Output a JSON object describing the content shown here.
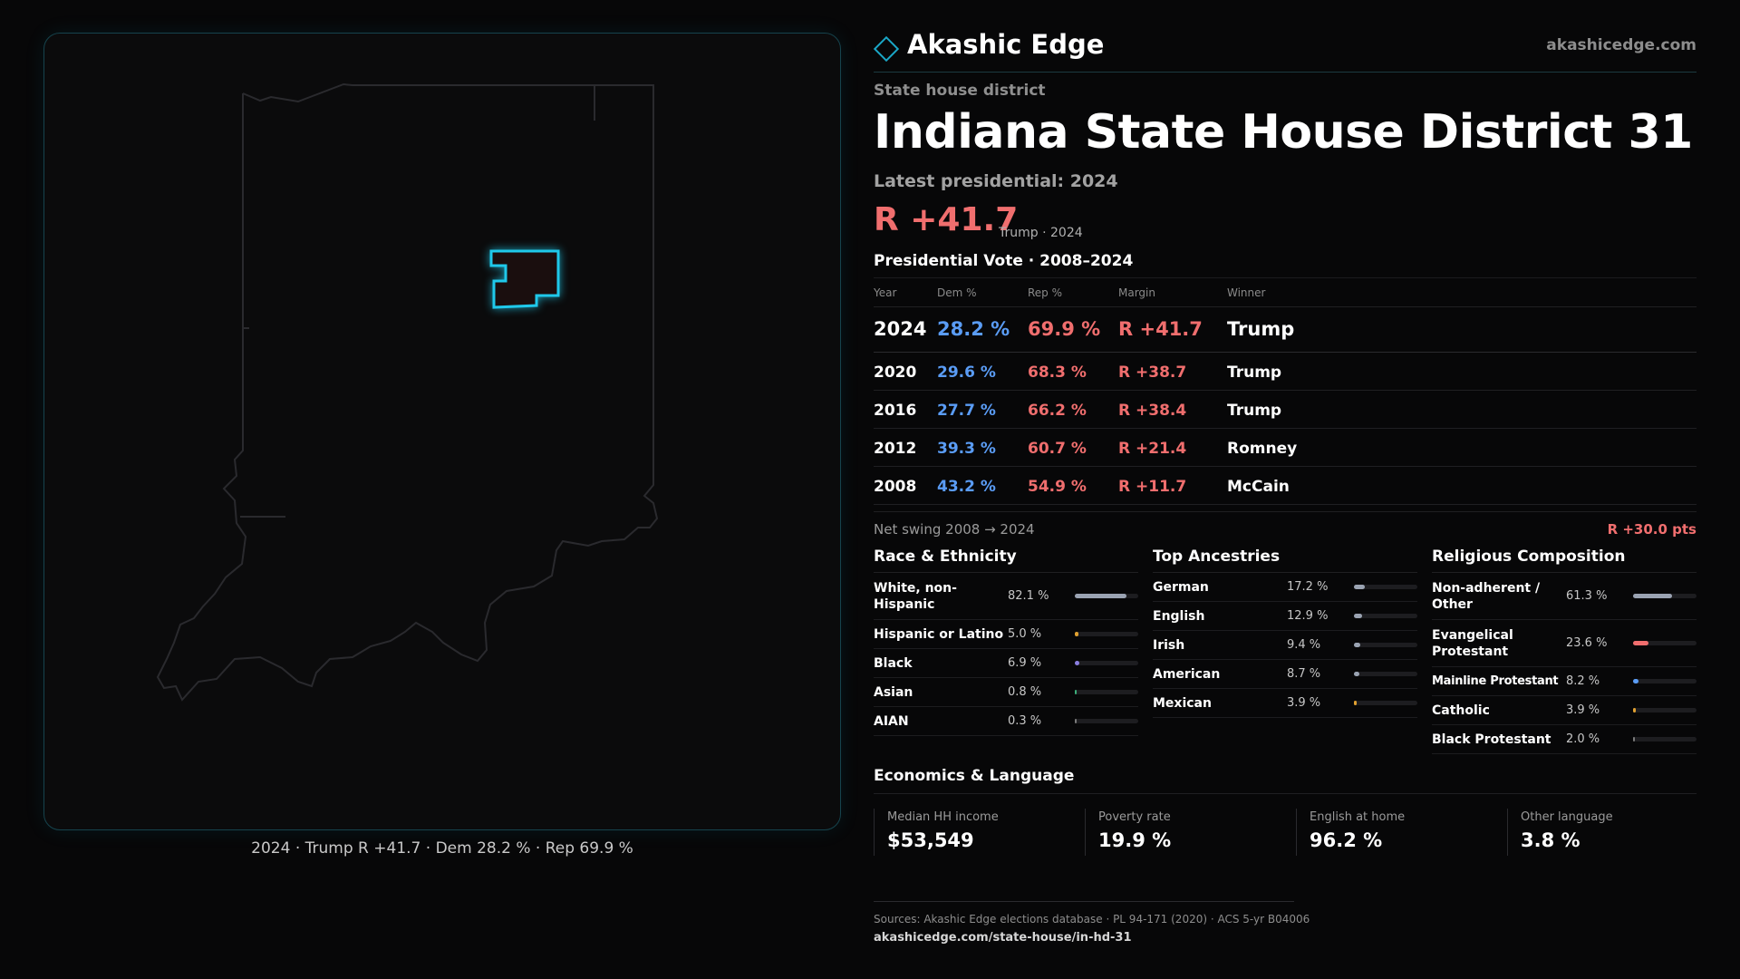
{
  "header": {
    "brand": "Akashic Edge",
    "site": "akashicedge.com"
  },
  "district": {
    "kind": "State house district",
    "title": "Indiana State House District 31",
    "latest_label": "Latest presidential: 2024",
    "margin": "R +41.7",
    "margin_sub": "Trump · 2024"
  },
  "map": {
    "caption": "2024 · Trump R +41.7 · Dem 28.2 % · Rep 69.9 %"
  },
  "presidential": {
    "title": "Presidential Vote · 2008–2024",
    "headers": {
      "year": "Year",
      "dem": "Dem %",
      "rep": "Rep %",
      "margin": "Margin",
      "winner": "Winner"
    },
    "rows": [
      {
        "year": "2024",
        "dem": "28.2 %",
        "rep": "69.9 %",
        "margin": "R +41.7",
        "winner": "Trump"
      },
      {
        "year": "2020",
        "dem": "29.6 %",
        "rep": "68.3 %",
        "margin": "R +38.7",
        "winner": "Trump"
      },
      {
        "year": "2016",
        "dem": "27.7 %",
        "rep": "66.2 %",
        "margin": "R +38.4",
        "winner": "Trump"
      },
      {
        "year": "2012",
        "dem": "39.3 %",
        "rep": "60.7 %",
        "margin": "R +21.4",
        "winner": "Romney"
      },
      {
        "year": "2008",
        "dem": "43.2 %",
        "rep": "54.9 %",
        "margin": "R +11.7",
        "winner": "McCain"
      }
    ],
    "swing_label": "Net swing 2008 → 2024",
    "swing_value": "R +30.0 pts"
  },
  "race": {
    "title": "Race & Ethnicity",
    "items": [
      {
        "label": "White, non-Hispanic",
        "value": "82.1 %",
        "share": 0.821,
        "color": "#9aa3b2"
      },
      {
        "label": "Hispanic or Latino",
        "value": "5.0 %",
        "share": 0.05,
        "color": "#e0a030"
      },
      {
        "label": "Black",
        "value": "6.9 %",
        "share": 0.069,
        "color": "#8a7ee0"
      },
      {
        "label": "Asian",
        "value": "0.8 %",
        "share": 0.008,
        "color": "#3cae7a"
      },
      {
        "label": "AIAN",
        "value": "0.3 %",
        "share": 0.003,
        "color": "#7a7a7a"
      }
    ]
  },
  "ancestry": {
    "title": "Top Ancestries",
    "items": [
      {
        "label": "German",
        "value": "17.2 %",
        "share": 0.172,
        "color": "#9aa3b2"
      },
      {
        "label": "English",
        "value": "12.9 %",
        "share": 0.129,
        "color": "#9aa3b2"
      },
      {
        "label": "Irish",
        "value": "9.4 %",
        "share": 0.094,
        "color": "#9aa3b2"
      },
      {
        "label": "American",
        "value": "8.7 %",
        "share": 0.087,
        "color": "#9aa3b2"
      },
      {
        "label": "Mexican",
        "value": "3.9 %",
        "share": 0.039,
        "color": "#e0a030"
      }
    ]
  },
  "religion": {
    "title": "Religious Composition",
    "items": [
      {
        "label": "Non-adherent / Other",
        "value": "61.3 %",
        "share": 0.613,
        "color": "#9aa3b2"
      },
      {
        "label": "Evangelical Protestant",
        "value": "23.6 %",
        "share": 0.236,
        "color": "#f06e6e"
      },
      {
        "label": "Mainline Protestant",
        "value": "8.2 %",
        "share": 0.082,
        "color": "#5a9cf5"
      },
      {
        "label": "Catholic",
        "value": "3.9 %",
        "share": 0.039,
        "color": "#e0a030"
      },
      {
        "label": "Black Protestant",
        "value": "2.0 %",
        "share": 0.02,
        "color": "#7a7a7a"
      }
    ]
  },
  "economics": {
    "title": "Economics & Language",
    "cards": [
      {
        "label": "Median HH income",
        "value": "$53,549"
      },
      {
        "label": "Poverty rate",
        "value": "19.9 %"
      },
      {
        "label": "English at home",
        "value": "96.2 %"
      },
      {
        "label": "Other language",
        "value": "3.8 %"
      }
    ]
  },
  "sources": {
    "line": "Sources: Akashic Edge elections database · PL 94-171 (2020) · ACS 5-yr B04006",
    "url": "akashicedge.com/state-house/in-hd-31"
  },
  "colors": {
    "dem": "#5a9cf5",
    "rep": "#f06e6e",
    "accent": "#1fc8ea"
  }
}
